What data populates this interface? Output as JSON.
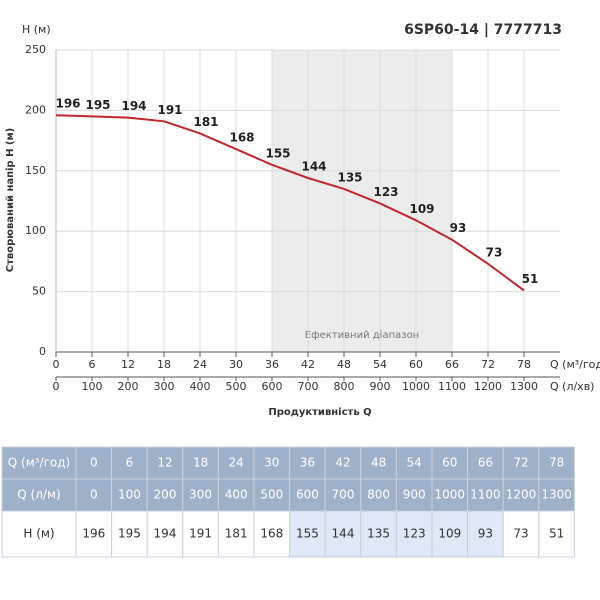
{
  "chart_data": {
    "type": "line",
    "title": "6SP60-14 | 7777713",
    "y_label": "Створюваний напір H (м)",
    "y_unit_label": "H (м)",
    "x_title": "Продуктивність Q",
    "x_label": "Q (м³/год)",
    "x2_label": "Q (л/хв)",
    "x": [
      0,
      6,
      12,
      18,
      24,
      30,
      36,
      42,
      48,
      54,
      60,
      66,
      72,
      78
    ],
    "x2": [
      0,
      100,
      200,
      300,
      400,
      500,
      600,
      700,
      800,
      900,
      1000,
      1100,
      1200,
      1300
    ],
    "series": [
      {
        "name": "H (м)",
        "color": "#c1272d",
        "values": [
          196,
          195,
          194,
          191,
          181,
          168,
          155,
          144,
          135,
          123,
          109,
          93,
          73,
          51
        ]
      }
    ],
    "xlim": [
      0,
      84
    ],
    "x2lim": [
      0,
      1400
    ],
    "xticks": [
      0,
      6,
      12,
      18,
      24,
      30,
      36,
      42,
      48,
      54,
      60,
      66,
      72,
      78
    ],
    "ylim": [
      0,
      250
    ],
    "yticks": [
      0,
      50,
      100,
      150,
      200,
      250
    ],
    "grid": true,
    "band": {
      "from": 36,
      "to": 66,
      "label": "Ефективний діапазон"
    }
  },
  "table": {
    "row_labels": [
      "Q (м³/год)",
      "Q (л/м)",
      "H (м)"
    ]
  }
}
